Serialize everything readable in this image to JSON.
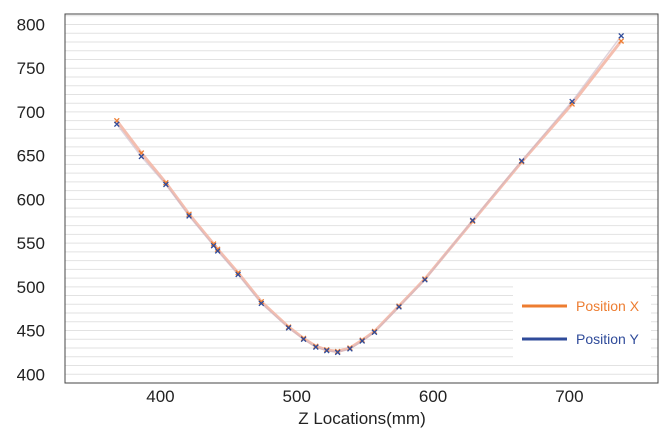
{
  "chart_data": {
    "type": "line",
    "title": "",
    "xlabel": "Z Locations(mm)",
    "ylabel": "",
    "xlim": [
      330,
      765
    ],
    "ylim": [
      390,
      812
    ],
    "xticks": [
      400,
      500,
      600,
      700
    ],
    "yticks": [
      400,
      450,
      500,
      550,
      600,
      650,
      700,
      750,
      800
    ],
    "grid": "horizontal",
    "legend_position": "bottom-right",
    "series": [
      {
        "name": "Position X",
        "color": "#ed7d31",
        "x": [
          368,
          386,
          404,
          421,
          439,
          442,
          457,
          474,
          494,
          505,
          514,
          522,
          530,
          539,
          548,
          557,
          575,
          594,
          629,
          665,
          702,
          738
        ],
        "y": [
          690,
          653,
          619,
          583,
          549,
          543,
          516,
          483,
          454,
          441,
          432,
          428,
          426,
          430,
          439,
          449,
          478,
          509,
          575,
          643,
          709,
          781
        ]
      },
      {
        "name": "Position Y",
        "color": "#2f4b9a",
        "x": [
          368,
          386,
          404,
          421,
          439,
          442,
          457,
          474,
          494,
          505,
          514,
          522,
          530,
          539,
          548,
          557,
          575,
          594,
          629,
          665,
          702,
          738
        ],
        "y": [
          686,
          649,
          617,
          581,
          547,
          541,
          514,
          481,
          453,
          440,
          431,
          427,
          425,
          429,
          438,
          448,
          477,
          508,
          576,
          644,
          712,
          787
        ]
      }
    ]
  }
}
